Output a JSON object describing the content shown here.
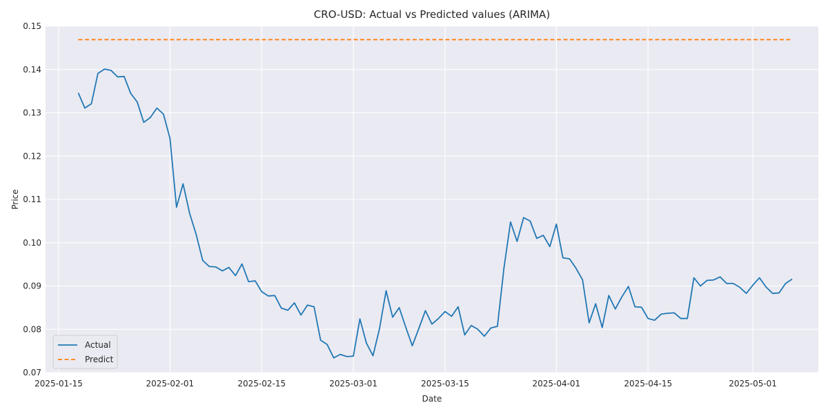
{
  "chart_data": {
    "type": "line",
    "title": "CRO-USD: Actual vs Predicted values (ARIMA)",
    "xlabel": "Date",
    "ylabel": "Price",
    "xlim": [
      "2025-01-13",
      "2025-05-11"
    ],
    "ylim": [
      0.07,
      0.15
    ],
    "x_ticks": [
      "2025-01-15",
      "2025-02-01",
      "2025-02-15",
      "2025-03-01",
      "2025-03-15",
      "2025-04-01",
      "2025-04-15",
      "2025-05-01"
    ],
    "y_ticks": [
      "0.07",
      "0.08",
      "0.09",
      "0.10",
      "0.11",
      "0.12",
      "0.13",
      "0.14",
      "0.15"
    ],
    "grid": true,
    "legend_position": "lower-left",
    "colors": {
      "Actual": "#1f77b4",
      "Predict": "#ff7f0e",
      "plot_bg": "#eaeaf2"
    },
    "series": [
      {
        "name": "Actual",
        "style": "solid",
        "x": [
          "2025-01-18",
          "2025-01-19",
          "2025-01-20",
          "2025-01-21",
          "2025-01-22",
          "2025-01-23",
          "2025-01-24",
          "2025-01-25",
          "2025-01-26",
          "2025-01-27",
          "2025-01-28",
          "2025-01-29",
          "2025-01-30",
          "2025-01-31",
          "2025-02-01",
          "2025-02-02",
          "2025-02-03",
          "2025-02-04",
          "2025-02-05",
          "2025-02-06",
          "2025-02-07",
          "2025-02-08",
          "2025-02-09",
          "2025-02-10",
          "2025-02-11",
          "2025-02-12",
          "2025-02-13",
          "2025-02-14",
          "2025-02-15",
          "2025-02-16",
          "2025-02-17",
          "2025-02-18",
          "2025-02-19",
          "2025-02-20",
          "2025-02-21",
          "2025-02-22",
          "2025-02-23",
          "2025-02-24",
          "2025-02-25",
          "2025-02-26",
          "2025-02-27",
          "2025-02-28",
          "2025-03-01",
          "2025-03-02",
          "2025-03-03",
          "2025-03-04",
          "2025-03-05",
          "2025-03-06",
          "2025-03-07",
          "2025-03-08",
          "2025-03-09",
          "2025-03-10",
          "2025-03-11",
          "2025-03-12",
          "2025-03-13",
          "2025-03-14",
          "2025-03-15",
          "2025-03-16",
          "2025-03-17",
          "2025-03-18",
          "2025-03-19",
          "2025-03-20",
          "2025-03-21",
          "2025-03-22",
          "2025-03-23",
          "2025-03-24",
          "2025-03-25",
          "2025-03-26",
          "2025-03-27",
          "2025-03-28",
          "2025-03-29",
          "2025-03-30",
          "2025-03-31",
          "2025-04-01",
          "2025-04-02",
          "2025-04-03",
          "2025-04-04",
          "2025-04-05",
          "2025-04-06",
          "2025-04-07",
          "2025-04-08",
          "2025-04-09",
          "2025-04-10",
          "2025-04-11",
          "2025-04-12",
          "2025-04-13",
          "2025-04-14",
          "2025-04-15",
          "2025-04-16",
          "2025-04-17",
          "2025-04-18",
          "2025-04-19",
          "2025-04-20",
          "2025-04-21",
          "2025-04-22",
          "2025-04-23",
          "2025-04-24",
          "2025-04-25",
          "2025-04-26",
          "2025-04-27",
          "2025-04-28",
          "2025-04-29",
          "2025-04-30",
          "2025-05-01",
          "2025-05-02",
          "2025-05-03",
          "2025-05-04",
          "2025-05-05",
          "2025-05-06",
          "2025-05-07"
        ],
        "y": [
          0.1346,
          0.1311,
          0.1321,
          0.1391,
          0.1401,
          0.1398,
          0.1383,
          0.1384,
          0.1345,
          0.1325,
          0.1278,
          0.1289,
          0.1311,
          0.1297,
          0.1241,
          0.1082,
          0.1136,
          0.1068,
          0.1019,
          0.0959,
          0.0945,
          0.0944,
          0.0935,
          0.0943,
          0.0924,
          0.0951,
          0.091,
          0.0912,
          0.0887,
          0.0877,
          0.0878,
          0.0849,
          0.0844,
          0.0861,
          0.0833,
          0.0856,
          0.0852,
          0.0775,
          0.0765,
          0.0734,
          0.0742,
          0.0737,
          0.0738,
          0.0824,
          0.0768,
          0.0739,
          0.0802,
          0.0889,
          0.0828,
          0.085,
          0.0805,
          0.0762,
          0.0802,
          0.0843,
          0.0812,
          0.0825,
          0.0841,
          0.083,
          0.0852,
          0.0787,
          0.0809,
          0.08,
          0.0784,
          0.0803,
          0.0807,
          0.0942,
          0.1048,
          0.1003,
          0.1058,
          0.105,
          0.101,
          0.1017,
          0.0991,
          0.1043,
          0.0965,
          0.0963,
          0.0941,
          0.0914,
          0.0815,
          0.0859,
          0.0804,
          0.0878,
          0.0847,
          0.0875,
          0.0899,
          0.0852,
          0.0851,
          0.0825,
          0.0821,
          0.0835,
          0.0837,
          0.0838,
          0.0825,
          0.0825,
          0.0919,
          0.09,
          0.0913,
          0.0914,
          0.0921,
          0.0906,
          0.0906,
          0.0897,
          0.0883,
          0.0902,
          0.0919,
          0.0898,
          0.0883,
          0.0884,
          0.0906,
          0.0916
        ]
      },
      {
        "name": "Predict",
        "style": "dashed",
        "x": [
          "2025-01-18",
          "2025-05-07"
        ],
        "y": [
          0.1469,
          0.1469
        ]
      }
    ]
  }
}
